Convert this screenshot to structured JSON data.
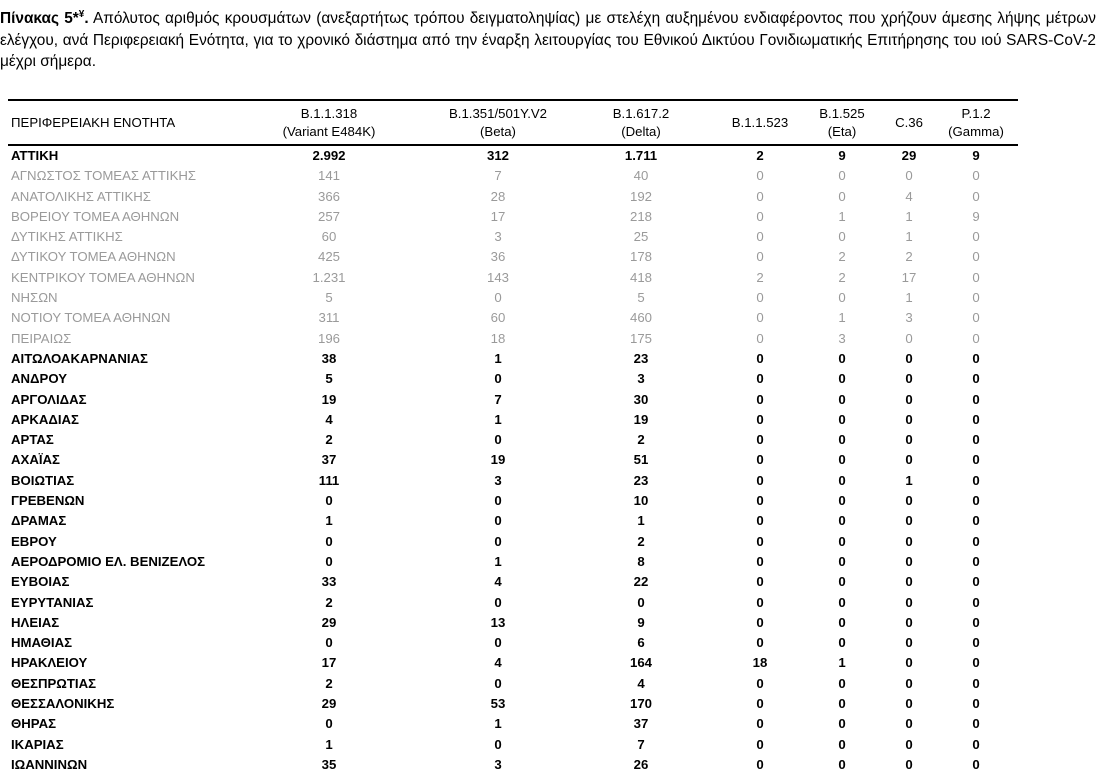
{
  "caption": {
    "label": "Πίνακας 5*",
    "superscript": "¥",
    "label_end": ".",
    "text": " Απόλυτος αριθμός κρουσμάτων (ανεξαρτήτως τρόπου δειγματοληψίας) με στελέχη αυξημένου ενδιαφέροντος που χρήζουν άμεσης λήψης μέτρων ελέγχου, ανά Περιφερειακή Ενότητα, για το χρονικό διάστημα από την έναρξη λειτουργίας του Εθνικού Δικτύου Γονιδιωματικής Επιτήρησης του ιού SARS-CoV-2 μέχρι σήμερα."
  },
  "table": {
    "headers": [
      {
        "line1": "ΠΕΡΙΦΕΡΕΙΑΚΗ ΕΝΟΤΗΤΑ",
        "line2": ""
      },
      {
        "line1": "B.1.1.318",
        "line2": "(Variant E484K)"
      },
      {
        "line1": "B.1.351/501Y.V2",
        "line2": "(Beta)"
      },
      {
        "line1": "B.1.617.2",
        "line2": "(Delta)"
      },
      {
        "line1": "B.1.1.523",
        "line2": ""
      },
      {
        "line1": "B.1.525",
        "line2": "(Eta)"
      },
      {
        "line1": "C.36",
        "line2": ""
      },
      {
        "line1": "P.1.2",
        "line2": "(Gamma)"
      }
    ],
    "styles": {
      "subregion_color": "#9a9a9a",
      "main_color": "#000000"
    },
    "rows": [
      {
        "style": "bold",
        "cells": [
          "ΑΤΤΙΚΗ",
          "2.992",
          "312",
          "1.711",
          "2",
          "9",
          "29",
          "9"
        ]
      },
      {
        "style": "sub",
        "cells": [
          "ΑΓΝΩΣΤΟΣ ΤΟΜΕΑΣ ΑΤΤΙΚΗΣ",
          "141",
          "7",
          "40",
          "0",
          "0",
          "0",
          "0"
        ]
      },
      {
        "style": "sub",
        "cells": [
          "ΑΝΑΤΟΛΙΚΗΣ ΑΤΤΙΚΗΣ",
          "366",
          "28",
          "192",
          "0",
          "0",
          "4",
          "0"
        ]
      },
      {
        "style": "sub",
        "cells": [
          "ΒΟΡΕΙΟΥ ΤΟΜΕΑ ΑΘΗΝΩΝ",
          "257",
          "17",
          "218",
          "0",
          "1",
          "1",
          "9"
        ]
      },
      {
        "style": "sub",
        "cells": [
          "ΔΥΤΙΚΗΣ ΑΤΤΙΚΗΣ",
          "60",
          "3",
          "25",
          "0",
          "0",
          "1",
          "0"
        ]
      },
      {
        "style": "sub",
        "cells": [
          "ΔΥΤΙΚΟΥ ΤΟΜΕΑ ΑΘΗΝΩΝ",
          "425",
          "36",
          "178",
          "0",
          "2",
          "2",
          "0"
        ]
      },
      {
        "style": "sub",
        "cells": [
          "ΚΕΝΤΡΙΚΟΥ ΤΟΜΕΑ ΑΘΗΝΩΝ",
          "1.231",
          "143",
          "418",
          "2",
          "2",
          "17",
          "0"
        ]
      },
      {
        "style": "sub",
        "cells": [
          "ΝΗΣΩΝ",
          "5",
          "0",
          "5",
          "0",
          "0",
          "1",
          "0"
        ]
      },
      {
        "style": "sub",
        "cells": [
          "ΝΟΤΙΟΥ ΤΟΜΕΑ ΑΘΗΝΩΝ",
          "311",
          "60",
          "460",
          "0",
          "1",
          "3",
          "0"
        ]
      },
      {
        "style": "sub",
        "cells": [
          "ΠΕΙΡΑΙΩΣ",
          "196",
          "18",
          "175",
          "0",
          "3",
          "0",
          "0"
        ]
      },
      {
        "style": "bold",
        "cells": [
          "ΑΙΤΩΛΟΑΚΑΡΝΑΝΙΑΣ",
          "38",
          "1",
          "23",
          "0",
          "0",
          "0",
          "0"
        ]
      },
      {
        "style": "bold",
        "cells": [
          "ΑΝΔΡΟΥ",
          "5",
          "0",
          "3",
          "0",
          "0",
          "0",
          "0"
        ]
      },
      {
        "style": "bold",
        "cells": [
          "ΑΡΓΟΛΙΔΑΣ",
          "19",
          "7",
          "30",
          "0",
          "0",
          "0",
          "0"
        ]
      },
      {
        "style": "bold",
        "cells": [
          "ΑΡΚΑΔΙΑΣ",
          "4",
          "1",
          "19",
          "0",
          "0",
          "0",
          "0"
        ]
      },
      {
        "style": "bold",
        "cells": [
          "ΑΡΤΑΣ",
          "2",
          "0",
          "2",
          "0",
          "0",
          "0",
          "0"
        ]
      },
      {
        "style": "bold",
        "cells": [
          "ΑΧΑΪΑΣ",
          "37",
          "19",
          "51",
          "0",
          "0",
          "0",
          "0"
        ]
      },
      {
        "style": "bold",
        "cells": [
          "ΒΟΙΩΤΙΑΣ",
          "111",
          "3",
          "23",
          "0",
          "0",
          "1",
          "0"
        ]
      },
      {
        "style": "bold",
        "cells": [
          "ΓΡΕΒΕΝΩΝ",
          "0",
          "0",
          "10",
          "0",
          "0",
          "0",
          "0"
        ]
      },
      {
        "style": "bold",
        "cells": [
          "ΔΡΑΜΑΣ",
          "1",
          "0",
          "1",
          "0",
          "0",
          "0",
          "0"
        ]
      },
      {
        "style": "bold",
        "cells": [
          "ΕΒΡΟΥ",
          "0",
          "0",
          "2",
          "0",
          "0",
          "0",
          "0"
        ]
      },
      {
        "style": "bold",
        "cells": [
          "ΑΕΡΟΔΡΟΜΙΟ ΕΛ. ΒΕΝΙΖΕΛΟΣ",
          "0",
          "1",
          "8",
          "0",
          "0",
          "0",
          "0"
        ]
      },
      {
        "style": "bold",
        "cells": [
          "ΕΥΒΟΙΑΣ",
          "33",
          "4",
          "22",
          "0",
          "0",
          "0",
          "0"
        ]
      },
      {
        "style": "bold",
        "cells": [
          "ΕΥΡΥΤΑΝΙΑΣ",
          "2",
          "0",
          "0",
          "0",
          "0",
          "0",
          "0"
        ]
      },
      {
        "style": "bold",
        "cells": [
          "ΗΛΕΙΑΣ",
          "29",
          "13",
          "9",
          "0",
          "0",
          "0",
          "0"
        ]
      },
      {
        "style": "bold",
        "cells": [
          "ΗΜΑΘΙΑΣ",
          "0",
          "0",
          "6",
          "0",
          "0",
          "0",
          "0"
        ]
      },
      {
        "style": "bold",
        "cells": [
          "ΗΡΑΚΛΕΙΟΥ",
          "17",
          "4",
          "164",
          "18",
          "1",
          "0",
          "0"
        ]
      },
      {
        "style": "bold",
        "cells": [
          "ΘΕΣΠΡΩΤΙΑΣ",
          "2",
          "0",
          "4",
          "0",
          "0",
          "0",
          "0"
        ]
      },
      {
        "style": "bold",
        "cells": [
          "ΘΕΣΣΑΛΟΝΙΚΗΣ",
          "29",
          "53",
          "170",
          "0",
          "0",
          "0",
          "0"
        ]
      },
      {
        "style": "bold",
        "cells": [
          "ΘΗΡΑΣ",
          "0",
          "1",
          "37",
          "0",
          "0",
          "0",
          "0"
        ]
      },
      {
        "style": "bold",
        "cells": [
          "ΙΚΑΡΙΑΣ",
          "1",
          "0",
          "7",
          "0",
          "0",
          "0",
          "0"
        ]
      },
      {
        "style": "bold",
        "cells": [
          "ΙΩΑΝΝΙΝΩΝ",
          "35",
          "3",
          "26",
          "0",
          "0",
          "0",
          "0"
        ]
      }
    ]
  }
}
